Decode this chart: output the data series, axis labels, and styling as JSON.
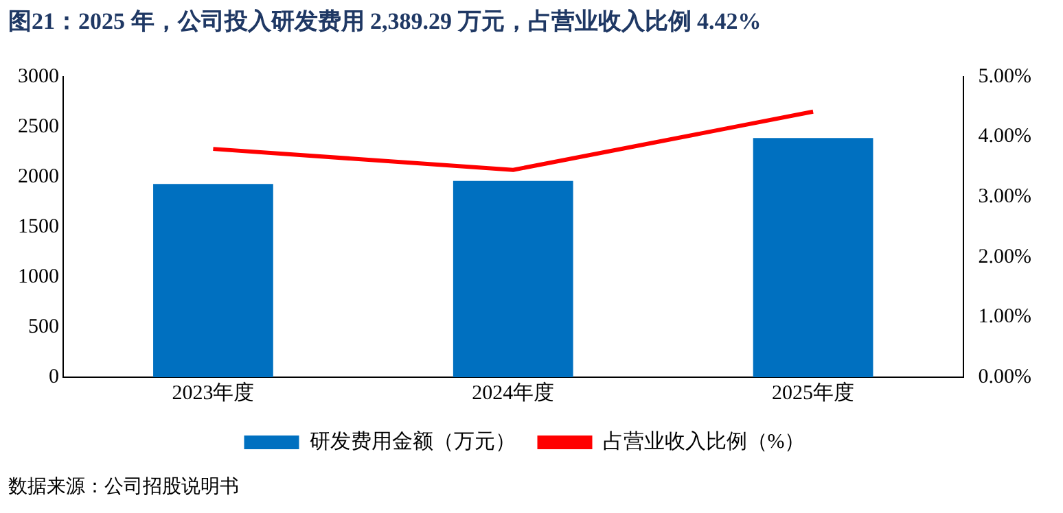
{
  "chart_data": {
    "type": "bar",
    "title": "图21：2025 年，公司投入研发费用 2,389.29 万元，占营业收入比例 4.42%",
    "categories": [
      "2023年度",
      "2024年度",
      "2025年度"
    ],
    "series": [
      {
        "name": "研发费用金额（万元）",
        "color": "#0070c0",
        "values": [
          1930,
          1960,
          2389
        ]
      },
      {
        "name": "占营业收入比例（%）",
        "type": "line",
        "color": "#ff0000",
        "axis": "y2",
        "marker": "none",
        "values": [
          3.8,
          3.45,
          4.42
        ]
      }
    ],
    "ylim": [
      0,
      3000
    ],
    "yticks": [
      0,
      500,
      1000,
      1500,
      2000,
      2500,
      3000
    ],
    "y2lim": [
      0,
      5
    ],
    "y2ticks": [
      {
        "value": 0,
        "label": "0.00%"
      },
      {
        "value": 1,
        "label": "1.00%"
      },
      {
        "value": 2,
        "label": "2.00%"
      },
      {
        "value": 3,
        "label": "3.00%"
      },
      {
        "value": 4,
        "label": "4.00%"
      },
      {
        "value": 5,
        "label": "5.00%"
      }
    ],
    "grid": false,
    "legend": "bottom",
    "annotations": [
      "数据来源：公司招股说明书"
    ]
  }
}
